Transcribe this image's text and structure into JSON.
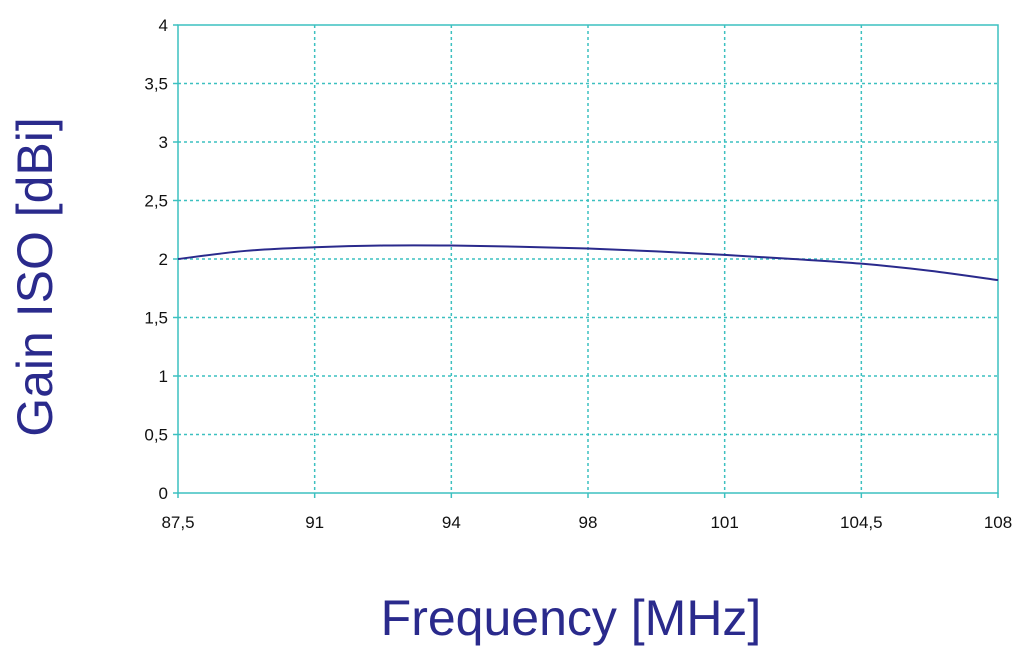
{
  "chart_data": {
    "type": "line",
    "xlabel": "Frequency [MHz]",
    "ylabel": "Gain ISO [dBi]",
    "x_ticks": [
      "87,5",
      "91",
      "94",
      "98",
      "101",
      "104,5",
      "108"
    ],
    "y_ticks": [
      "0",
      "0,5",
      "1",
      "1,5",
      "2",
      "2,5",
      "3",
      "3,5",
      "4"
    ],
    "ylim": [
      0,
      4
    ],
    "grid": true,
    "series": [
      {
        "x_tick_index": [
          0,
          0.5,
          1,
          1.5,
          2,
          2.5,
          3,
          3.5,
          4,
          4.5,
          5,
          5.5,
          6
        ],
        "values": [
          2.0,
          2.07,
          2.1,
          2.115,
          2.115,
          2.105,
          2.09,
          2.065,
          2.035,
          2.0,
          1.96,
          1.9,
          1.82
        ]
      }
    ],
    "colors": {
      "line": "#2a2a8c",
      "grid": "#3cc0c0",
      "axis_title": "#2a2a8c",
      "tick_label": "#111111"
    }
  }
}
